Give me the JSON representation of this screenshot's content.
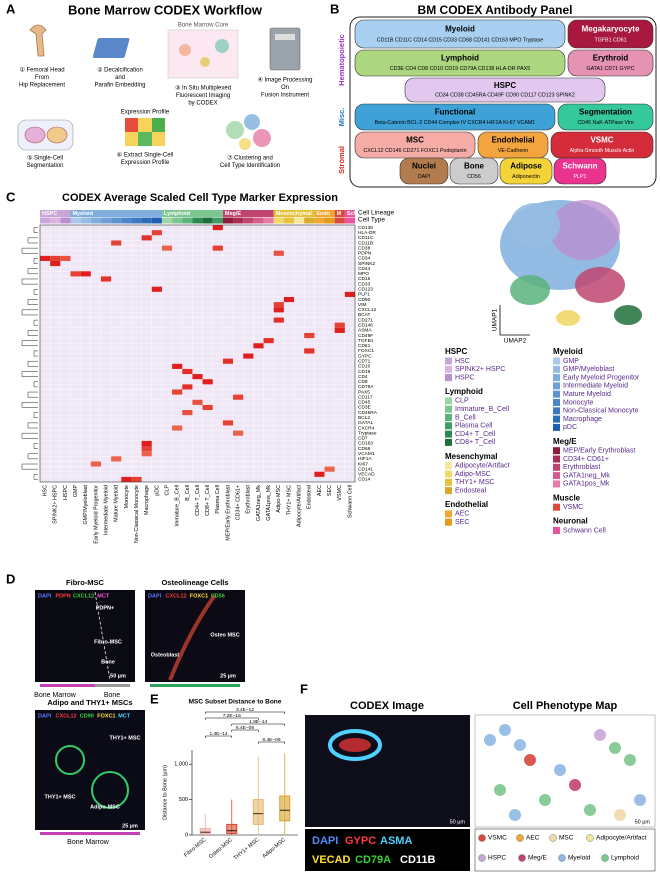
{
  "panel_a": {
    "label": "A",
    "title": "Bone Marrow CODEX Workflow",
    "core_label": "Bone Marrow Core",
    "profile_label": "Expression Profile",
    "steps": [
      [
        "① Femoral Head",
        "From",
        "Hip Replacement"
      ],
      [
        "② Decalcification",
        "and",
        "Parafin Embedding"
      ],
      [
        "③ In Situ Multiplexed",
        "Fluorescent Imaging",
        "by CODEX"
      ],
      [
        "④ Image Processing",
        "On",
        "Fusion Instrument"
      ],
      [
        "⑤ Single-Cell",
        "Segmentation"
      ],
      [
        "⑥ Extract Single-Cell",
        "Expression Profile"
      ],
      [
        "⑦ Clustering and",
        "Cell Type Identification"
      ]
    ]
  },
  "panel_b": {
    "label": "B",
    "title": "BM CODEX Antibody Panel",
    "groups": [
      {
        "name": "Hematopoietic",
        "color": "#9b30c8"
      },
      {
        "name": "Misc.",
        "color": "#1f78c8"
      },
      {
        "name": "Stromal",
        "color": "#d62828"
      }
    ],
    "boxes": [
      {
        "title": "Myeloid",
        "markers": "CD11B CD11C CD14 CD15 CD33 CD68 CD141 CD163 MPO Tryptase",
        "color": "#a9d0f0"
      },
      {
        "title": "Megakaryocyte",
        "markers": "TGFB1 CD61",
        "color": "#a8183e"
      },
      {
        "title": "Lymphoid",
        "markers": "CD3E CD4 CD8 CD10 CD19 CD79A CD138 HLA-DR PAX5",
        "color": "#acd67f"
      },
      {
        "title": "Erythroid",
        "markers": "GATA1 CD71 GYPC",
        "color": "#e592b3"
      },
      {
        "title": "HSPC",
        "markers": "CD34 CD38 CD45RA CD49F CD90 CD117 CD123 SPINK2",
        "color": "#e2c8ef"
      },
      {
        "title": "Functional",
        "markers": "Beta-Catenin BCL-2 CD44 Complex IV CXCR4 HIF1A Ki-67 VCAM1",
        "color": "#3ea2d8"
      },
      {
        "title": "Segmentation",
        "markers": "CD45 NaK-ATPase Vim",
        "color": "#35c89b"
      },
      {
        "title": "MSC",
        "markers": "CXCL12 CD146 CD271 FOXC1 Podoplanin",
        "color": "#f5aca7"
      },
      {
        "title": "Endothelial",
        "markers": "VE-Cadherin",
        "color": "#f3a43e"
      },
      {
        "title": "VSMC",
        "markers": "Alpha-Smooth Muscle Actin",
        "color": "#d42c3a"
      },
      {
        "title": "Nuclei",
        "markers": "DAPI",
        "color": "#b27c4e"
      },
      {
        "title": "Bone",
        "markers": "CD56",
        "color": "#cccccc"
      },
      {
        "title": "Adipose",
        "markers": "Adiponectin",
        "color": "#f4d338"
      },
      {
        "title": "Schwann",
        "markers": "PLP1",
        "color": "#ea338f"
      }
    ]
  },
  "panel_c": {
    "label": "C",
    "title": "CODEX Average Scaled Cell Type Marker Expression",
    "bar_labels": [
      "Cell Lineage",
      "Cell Type"
    ],
    "lineage_bar": [
      {
        "label": "HSPC",
        "color": "#c9a6d9",
        "columns": [
          "HSC",
          "SPINK2+ HSPC",
          "HSPC"
        ]
      },
      {
        "label": "Myeloid",
        "color": "#7faedd",
        "columns": [
          "GMP",
          "GMP/Myeloblast",
          "Early Myeloid Progenitor",
          "Intermediate Myeloid",
          "Mature Myeloid",
          "Monocyte",
          "Non-Classical Monocyte",
          "Macrophage",
          "pDC"
        ]
      },
      {
        "label": "Lymphoid",
        "color": "#7cc68f",
        "columns": [
          "CLP",
          "Immature_B_Cell",
          "B_Cell",
          "CD4+ T_Cell",
          "CD8+ T_Cell",
          "Plasma Cell"
        ]
      },
      {
        "label": "Meg/E",
        "color": "#c04470",
        "columns": [
          "MEP/Early Erythroblast",
          "CD34+ CD61+",
          "Erythroblast",
          "GATA1neg_Mk",
          "GATA1pos_Mk"
        ]
      },
      {
        "label": "Mesenchymal",
        "color": "#e6c23b",
        "columns": [
          "Adipo-MSC",
          "THY1+ MSC",
          "Adipocyte/Artifact",
          "Endosteal"
        ]
      },
      {
        "label": "Endo",
        "color": "#f0a830",
        "columns": [
          "AEC",
          "SEC"
        ]
      },
      {
        "label": "M",
        "color": "#d9473d",
        "columns": [
          "VSMC"
        ]
      },
      {
        "label": "Sch",
        "color": "#e9559a",
        "columns": [
          "Schwann Cell"
        ]
      }
    ],
    "markers": [
      "CD138",
      "HLA-DR",
      "CD11C",
      "CD11B",
      "CD38",
      "PDPN",
      "CD34",
      "SPINK2",
      "CD44",
      "MPO",
      "CD15",
      "CD33",
      "CD123",
      "PLP1",
      "CD90",
      "VIM",
      "CXCL12",
      "BCAT",
      "CD271",
      "CD146",
      "ASMA",
      "CD49F",
      "TGFB1",
      "CD61",
      "FOXC1",
      "GYPC",
      "CD71",
      "CD10",
      "CD19",
      "CD4",
      "CD8",
      "CD79A",
      "PAX5",
      "CD117",
      "CD45",
      "CD3E",
      "CD45RA",
      "BCL2",
      "GATA1",
      "CXCR4",
      "Tryptase",
      "CD7",
      "CD163",
      "CD68",
      "VCAM1",
      "HIF1A",
      "KI67",
      "CD141",
      "VECAD",
      "CD14"
    ],
    "high_cells": [
      {
        "marker": "CD138",
        "cell_type": "Plasma Cell",
        "value": 1
      },
      {
        "marker": "HLA-DR",
        "cell_type": "pDC",
        "value": 0.8
      },
      {
        "marker": "CD11C",
        "cell_type": "Macrophage",
        "value": 0.9
      },
      {
        "marker": "CD11B",
        "cell_type": "Mature Myeloid",
        "value": 0.8
      },
      {
        "marker": "CD38",
        "cell_type": "Plasma Cell",
        "value": 0.8
      },
      {
        "marker": "CD38",
        "cell_type": "CLP",
        "value": 0.6
      },
      {
        "marker": "PDPN",
        "cell_type": "Adipo-MSC",
        "value": 0.7
      },
      {
        "marker": "CD34",
        "cell_type": "HSC",
        "value": 1
      },
      {
        "marker": "CD34",
        "cell_type": "SPINK2+ HSPC",
        "value": 0.8
      },
      {
        "marker": "CD34",
        "cell_type": "HSPC",
        "value": 0.7
      },
      {
        "marker": "SPINK2",
        "cell_type": "SPINK2+ HSPC",
        "value": 1
      },
      {
        "marker": "MPO",
        "cell_type": "GMP/Myeloblast",
        "value": 1
      },
      {
        "marker": "MPO",
        "cell_type": "GMP",
        "value": 0.8
      },
      {
        "marker": "CD15",
        "cell_type": "Intermediate Myeloid",
        "value": 0.9
      },
      {
        "marker": "CD123",
        "cell_type": "pDC",
        "value": 1
      },
      {
        "marker": "PLP1",
        "cell_type": "Schwann Cell",
        "value": 1
      },
      {
        "marker": "CD90",
        "cell_type": "THY1+ MSC",
        "value": 1
      },
      {
        "marker": "VIM",
        "cell_type": "Adipo-MSC",
        "value": 0.8
      },
      {
        "marker": "CXCL12",
        "cell_type": "Adipo-MSC",
        "value": 1
      },
      {
        "marker": "CD271",
        "cell_type": "Adipo-MSC",
        "value": 0.9
      },
      {
        "marker": "CD146",
        "cell_type": "VSMC",
        "value": 0.8
      },
      {
        "marker": "ASMA",
        "cell_type": "VSMC",
        "value": 1
      },
      {
        "marker": "CD49F",
        "cell_type": "Endosteal",
        "value": 0.8
      },
      {
        "marker": "TGFB1",
        "cell_type": "GATA1pos_Mk",
        "value": 0.9
      },
      {
        "marker": "CD61",
        "cell_type": "GATA1neg_Mk",
        "value": 1
      },
      {
        "marker": "FOXC1",
        "cell_type": "Endosteal",
        "value": 0.9
      },
      {
        "marker": "GYPC",
        "cell_type": "Erythroblast",
        "value": 1
      },
      {
        "marker": "CD71",
        "cell_type": "MEP/Early Erythroblast",
        "value": 0.9
      },
      {
        "marker": "CD10",
        "cell_type": "Immature_B_Cell",
        "value": 1
      },
      {
        "marker": "CD19",
        "cell_type": "B_Cell",
        "value": 0.9
      },
      {
        "marker": "CD4",
        "cell_type": "CD4+ T_Cell",
        "value": 1
      },
      {
        "marker": "CD8",
        "cell_type": "CD8+ T_Cell",
        "value": 1
      },
      {
        "marker": "CD79A",
        "cell_type": "B_Cell",
        "value": 0.9
      },
      {
        "marker": "PAX5",
        "cell_type": "Immature_B_Cell",
        "value": 0.8
      },
      {
        "marker": "CD117",
        "cell_type": "CD34+ CD61+",
        "value": 0.8
      },
      {
        "marker": "CD45",
        "cell_type": "CD4+ T_Cell",
        "value": 0.7
      },
      {
        "marker": "CD3E",
        "cell_type": "CD8+ T_Cell",
        "value": 0.8
      },
      {
        "marker": "CD45RA",
        "cell_type": "B_Cell",
        "value": 0.7
      },
      {
        "marker": "GATA1",
        "cell_type": "MEP/Early Erythroblast",
        "value": 0.8
      },
      {
        "marker": "CXCR4",
        "cell_type": "Immature_B_Cell",
        "value": 0.6
      },
      {
        "marker": "Tryptase",
        "cell_type": "CD34+ CD61+",
        "value": 0.6
      },
      {
        "marker": "CD163",
        "cell_type": "Macrophage",
        "value": 1
      },
      {
        "marker": "CD68",
        "cell_type": "Macrophage",
        "value": 0.8
      },
      {
        "marker": "VCAM1",
        "cell_type": "Macrophage",
        "value": 0.6
      },
      {
        "marker": "HIF1A",
        "cell_type": "Mature Myeloid",
        "value": 0.6
      },
      {
        "marker": "KI67",
        "cell_type": "Early Myeloid Progenitor",
        "value": 0.6
      },
      {
        "marker": "CD141",
        "cell_type": "SEC",
        "value": 0.6
      },
      {
        "marker": "VECAD",
        "cell_type": "AEC",
        "value": 1
      },
      {
        "marker": "CD14",
        "cell_type": "Monocyte",
        "value": 1
      },
      {
        "marker": "CD14",
        "cell_type": "Non-Classical Monocyte",
        "value": 0.8
      }
    ],
    "umap_axes": [
      "UMAP1",
      "UMAP2"
    ],
    "legend": [
      {
        "name": "HSPC",
        "items": [
          {
            "name": "HSC",
            "color": "#c9a6d9"
          },
          {
            "name": "SPINK2+ HSPC",
            "color": "#dcb3e0"
          },
          {
            "name": "HSPC",
            "color": "#b98fd0"
          }
        ]
      },
      {
        "name": "Lymphoid",
        "items": [
          {
            "name": "CLP",
            "color": "#9fd4a5"
          },
          {
            "name": "Immature_B_Cell",
            "color": "#7cc68f"
          },
          {
            "name": "B_Cell",
            "color": "#5bb37c"
          },
          {
            "name": "Plasma Cell",
            "color": "#3d9c62"
          },
          {
            "name": "CD4+ T_Cell",
            "color": "#2d8a4e"
          },
          {
            "name": "CD8+ T_Cell",
            "color": "#1f6e3b"
          }
        ]
      },
      {
        "name": "Mesenchymal",
        "items": [
          {
            "name": "Adipocyte/Artifact",
            "color": "#f5e79e"
          },
          {
            "name": "Adipo-MSC",
            "color": "#f1d86a"
          },
          {
            "name": "THY1+ MSC",
            "color": "#e6c23b"
          },
          {
            "name": "Endosteal",
            "color": "#d9a928"
          }
        ]
      },
      {
        "name": "Endothelial",
        "items": [
          {
            "name": "AEC",
            "color": "#f0a830"
          },
          {
            "name": "SEC",
            "color": "#e69a1a"
          }
        ]
      },
      {
        "name": "Myeloid",
        "items": [
          {
            "name": "GMP",
            "color": "#aac8e8"
          },
          {
            "name": "GMP/Myeloblast",
            "color": "#97bce3"
          },
          {
            "name": "Early Myeloid Progenitor",
            "color": "#7faedd"
          },
          {
            "name": "Intermediate Myeloid",
            "color": "#6fa1d6"
          },
          {
            "name": "Mature Myeloid",
            "color": "#5e93cf"
          },
          {
            "name": "Monocyte",
            "color": "#4d86c8"
          },
          {
            "name": "Non-Classical Monocyte",
            "color": "#3e79c1"
          },
          {
            "name": "Macrophage",
            "color": "#2d6cb9"
          },
          {
            "name": "pDC",
            "color": "#1e5fb2"
          }
        ]
      },
      {
        "name": "Meg/E",
        "items": [
          {
            "name": "MEP/Early Erythroblast",
            "color": "#8c1a3a"
          },
          {
            "name": "CD34+ CD61+",
            "color": "#a72d55"
          },
          {
            "name": "Erythroblast",
            "color": "#c04470"
          },
          {
            "name": "GATA1neg_Mk",
            "color": "#d45e8b"
          },
          {
            "name": "GATA1pos_Mk",
            "color": "#e67aa5"
          }
        ]
      },
      {
        "name": "Muscle",
        "items": [
          {
            "name": "VSMC",
            "color": "#d9473d"
          }
        ]
      },
      {
        "name": "Neuronal",
        "items": [
          {
            "name": "Schwann Cell",
            "color": "#e9559a"
          }
        ]
      }
    ]
  },
  "panel_d": {
    "label": "D",
    "images": [
      {
        "title": "Fibro-MSC",
        "stains": [
          {
            "text": "DAPI",
            "color": "#5b7bff"
          },
          {
            "text": "PDPN",
            "color": "#ff3b3b"
          },
          {
            "text": "CXCL12",
            "color": "#35d335"
          },
          {
            "text": "MCT",
            "color": "#ff4fd8"
          }
        ],
        "notes": [
          "PDPN+",
          "Fibro-MSC",
          "Bone",
          "50 µm"
        ],
        "below": [
          "Bone Marrow",
          "Bone"
        ]
      },
      {
        "title": "Osteolineage Cells",
        "stains": [
          {
            "text": "DAPI",
            "color": "#5b7bff"
          },
          {
            "text": "CXCL12",
            "color": "#ff3b3b"
          },
          {
            "text": "FOXC1",
            "color": "#ffe03a"
          },
          {
            "text": "CD56",
            "color": "#35d335"
          }
        ],
        "notes": [
          "Osteo MSC",
          "Osteoblast",
          "25 µm"
        ],
        "below": []
      },
      {
        "title": "Adipo and THY1+ MSCs",
        "stains": [
          {
            "text": "DAPI",
            "color": "#5b7bff"
          },
          {
            "text": "CXCL12",
            "color": "#ff3b3b"
          },
          {
            "text": "CD90",
            "color": "#35d335"
          },
          {
            "text": "FOXC1",
            "color": "#ffe03a"
          },
          {
            "text": "MCT",
            "color": "#47d6ff"
          }
        ],
        "notes": [
          "THY1+ MSC",
          "THY1+ MSC",
          "Adipo-MSC",
          "25 µm"
        ],
        "below": [
          "Bone Marrow"
        ]
      }
    ]
  },
  "panel_e": {
    "label": "E",
    "chart_data": {
      "type": "box",
      "title": "MSC Subset Distance to Bone",
      "y_label": "Distance to Bone (µm)",
      "categories": [
        "Fibro-MSC",
        "Osteo-MSC",
        "THY1+ MSC",
        "Adipo-MSC"
      ],
      "colors": [
        "#f4a9a0",
        "#d9472f",
        "#e6b66a",
        "#d9a12d"
      ],
      "min": [
        0,
        0,
        0,
        0
      ],
      "q1": [
        10,
        20,
        150,
        200
      ],
      "median": [
        40,
        60,
        300,
        350
      ],
      "q3": [
        90,
        150,
        500,
        550
      ],
      "max": [
        300,
        500,
        1100,
        1150
      ],
      "ylim": [
        0,
        1200
      ],
      "yticks": [
        0,
        500,
        {
          "value": 1000,
          "label": "1,000"
        }
      ],
      "annotations": [
        "3.4E−12",
        "7.2E−16",
        "1.8E−14",
        "6.4E−08",
        "1.4E−14",
        "6.4E−09"
      ]
    }
  },
  "panel_f": {
    "label": "F",
    "image_title": "CODEX Image",
    "map_title": "Cell Phenotype Map",
    "scale": [
      "50 µm",
      "50 µm"
    ],
    "stains": [
      {
        "text": "DAPI",
        "color": "#4f8cff"
      },
      {
        "text": "GYPC",
        "color": "#ff3b3b"
      },
      {
        "text": "ASMA",
        "color": "#4fd2ff"
      },
      {
        "text": "VECAD",
        "color": "#ffe03a"
      },
      {
        "text": "CD79A",
        "color": "#35d335"
      },
      {
        "text": "CD11B",
        "color": "#ffffff"
      }
    ],
    "legend": [
      {
        "name": "VSMC",
        "color": "#d9473d"
      },
      {
        "name": "AEC",
        "color": "#f0a830"
      },
      {
        "name": "MSC",
        "color": "#f3d8a8"
      },
      {
        "name": "Adipocyte/Artifact",
        "color": "#f5e79e"
      },
      {
        "name": "HSPC",
        "color": "#c9a6d9"
      },
      {
        "name": "Meg/E",
        "color": "#c04470"
      },
      {
        "name": "Myeloid",
        "color": "#8fb8e3"
      },
      {
        "name": "Lymphoid",
        "color": "#7cc68f"
      }
    ]
  }
}
